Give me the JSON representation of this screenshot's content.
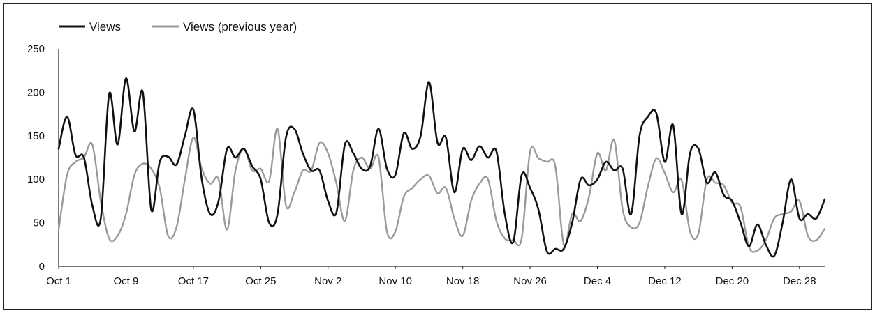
{
  "chart_data": {
    "type": "line",
    "title": "",
    "xlabel": "",
    "ylabel": "",
    "ylim": [
      0,
      250
    ],
    "yticks": [
      0,
      50,
      100,
      150,
      200,
      250
    ],
    "x_tick_labels": [
      "Oct 1",
      "Oct 9",
      "Oct 17",
      "Oct 25",
      "Nov 2",
      "Nov 10",
      "Nov 18",
      "Nov 26",
      "Dec 4",
      "Dec 12",
      "Dec 20",
      "Dec 28"
    ],
    "x_start": "2023-10-01",
    "x_end": "2023-12-31",
    "grid": false,
    "legend_position": "top-left",
    "colors": {
      "Views": "#111111",
      "Views (previous year)": "#9a9a9a"
    },
    "series": [
      {
        "name": "Views",
        "x": [
          "2023-10-01",
          "2023-10-02",
          "2023-10-03",
          "2023-10-04",
          "2023-10-05",
          "2023-10-06",
          "2023-10-07",
          "2023-10-08",
          "2023-10-09",
          "2023-10-10",
          "2023-10-11",
          "2023-10-12",
          "2023-10-13",
          "2023-10-14",
          "2023-10-15",
          "2023-10-16",
          "2023-10-17",
          "2023-10-18",
          "2023-10-19",
          "2023-10-20",
          "2023-10-21",
          "2023-10-22",
          "2023-10-23",
          "2023-10-24",
          "2023-10-25",
          "2023-10-26",
          "2023-10-27",
          "2023-10-28",
          "2023-10-29",
          "2023-10-30",
          "2023-10-31",
          "2023-11-01",
          "2023-11-02",
          "2023-11-03",
          "2023-11-04",
          "2023-11-05",
          "2023-11-06",
          "2023-11-07",
          "2023-11-08",
          "2023-11-09",
          "2023-11-10",
          "2023-11-11",
          "2023-11-12",
          "2023-11-13",
          "2023-11-14",
          "2023-11-15",
          "2023-11-16",
          "2023-11-17",
          "2023-11-18",
          "2023-11-19",
          "2023-11-20",
          "2023-11-21",
          "2023-11-22",
          "2023-11-23",
          "2023-11-24",
          "2023-11-25",
          "2023-11-26",
          "2023-11-27",
          "2023-11-28",
          "2023-11-29",
          "2023-11-30",
          "2023-12-01",
          "2023-12-02",
          "2023-12-03",
          "2023-12-04",
          "2023-12-05",
          "2023-12-06",
          "2023-12-07",
          "2023-12-08",
          "2023-12-09",
          "2023-12-10",
          "2023-12-11",
          "2023-12-12",
          "2023-12-13",
          "2023-12-14",
          "2023-12-15",
          "2023-12-16",
          "2023-12-17",
          "2023-12-18",
          "2023-12-19",
          "2023-12-20",
          "2023-12-21",
          "2023-12-22",
          "2023-12-23",
          "2023-12-24",
          "2023-12-25",
          "2023-12-26",
          "2023-12-27",
          "2023-12-28",
          "2023-12-29",
          "2023-12-30",
          "2023-12-31"
        ],
        "values": [
          135,
          172,
          128,
          125,
          70,
          55,
          198,
          140,
          216,
          155,
          200,
          65,
          120,
          126,
          117,
          150,
          180,
          100,
          60,
          75,
          135,
          125,
          135,
          115,
          100,
          50,
          60,
          148,
          158,
          130,
          110,
          110,
          75,
          62,
          140,
          130,
          112,
          115,
          158,
          112,
          105,
          153,
          135,
          150,
          212,
          142,
          148,
          85,
          135,
          122,
          138,
          125,
          132,
          60,
          28,
          105,
          90,
          65,
          17,
          20,
          20,
          50,
          100,
          93,
          100,
          120,
          110,
          112,
          60,
          150,
          172,
          176,
          120,
          162,
          60,
          130,
          135,
          96,
          108,
          82,
          75,
          50,
          23,
          48,
          25,
          12,
          50,
          100,
          55,
          60,
          55,
          77
        ]
      },
      {
        "name": "Views (previous year)",
        "x": [
          "2023-10-01",
          "2023-10-02",
          "2023-10-03",
          "2023-10-04",
          "2023-10-05",
          "2023-10-06",
          "2023-10-07",
          "2023-10-08",
          "2023-10-09",
          "2023-10-10",
          "2023-10-11",
          "2023-10-12",
          "2023-10-13",
          "2023-10-14",
          "2023-10-15",
          "2023-10-16",
          "2023-10-17",
          "2023-10-18",
          "2023-10-19",
          "2023-10-20",
          "2023-10-21",
          "2023-10-22",
          "2023-10-23",
          "2023-10-24",
          "2023-10-25",
          "2023-10-26",
          "2023-10-27",
          "2023-10-28",
          "2023-10-29",
          "2023-10-30",
          "2023-10-31",
          "2023-11-01",
          "2023-11-02",
          "2023-11-03",
          "2023-11-04",
          "2023-11-05",
          "2023-11-06",
          "2023-11-07",
          "2023-11-08",
          "2023-11-09",
          "2023-11-10",
          "2023-11-11",
          "2023-11-12",
          "2023-11-13",
          "2023-11-14",
          "2023-11-15",
          "2023-11-16",
          "2023-11-17",
          "2023-11-18",
          "2023-11-19",
          "2023-11-20",
          "2023-11-21",
          "2023-11-22",
          "2023-11-23",
          "2023-11-24",
          "2023-11-25",
          "2023-11-26",
          "2023-11-27",
          "2023-11-28",
          "2023-11-29",
          "2023-11-30",
          "2023-12-01",
          "2023-12-02",
          "2023-12-03",
          "2023-12-04",
          "2023-12-05",
          "2023-12-06",
          "2023-12-07",
          "2023-12-08",
          "2023-12-09",
          "2023-12-10",
          "2023-12-11",
          "2023-12-12",
          "2023-12-13",
          "2023-12-14",
          "2023-12-15",
          "2023-12-16",
          "2023-12-17",
          "2023-12-18",
          "2023-12-19",
          "2023-12-20",
          "2023-12-21",
          "2023-12-22",
          "2023-12-23",
          "2023-12-24",
          "2023-12-25",
          "2023-12-26",
          "2023-12-27",
          "2023-12-28",
          "2023-12-29",
          "2023-12-30",
          "2023-12-31"
        ],
        "values": [
          42,
          105,
          120,
          125,
          140,
          75,
          32,
          35,
          60,
          105,
          118,
          112,
          90,
          35,
          45,
          100,
          148,
          112,
          95,
          100,
          42,
          110,
          135,
          110,
          112,
          98,
          158,
          70,
          85,
          110,
          110,
          142,
          130,
          95,
          52,
          110,
          125,
          112,
          125,
          40,
          40,
          80,
          90,
          100,
          104,
          84,
          90,
          55,
          35,
          75,
          95,
          100,
          52,
          32,
          30,
          32,
          132,
          124,
          120,
          115,
          25,
          60,
          52,
          80,
          130,
          110,
          145,
          65,
          45,
          50,
          92,
          124,
          107,
          85,
          99,
          40,
          38,
          100,
          96,
          93,
          73,
          68,
          22,
          18,
          30,
          55,
          60,
          63,
          75,
          35,
          30,
          43
        ]
      }
    ]
  }
}
